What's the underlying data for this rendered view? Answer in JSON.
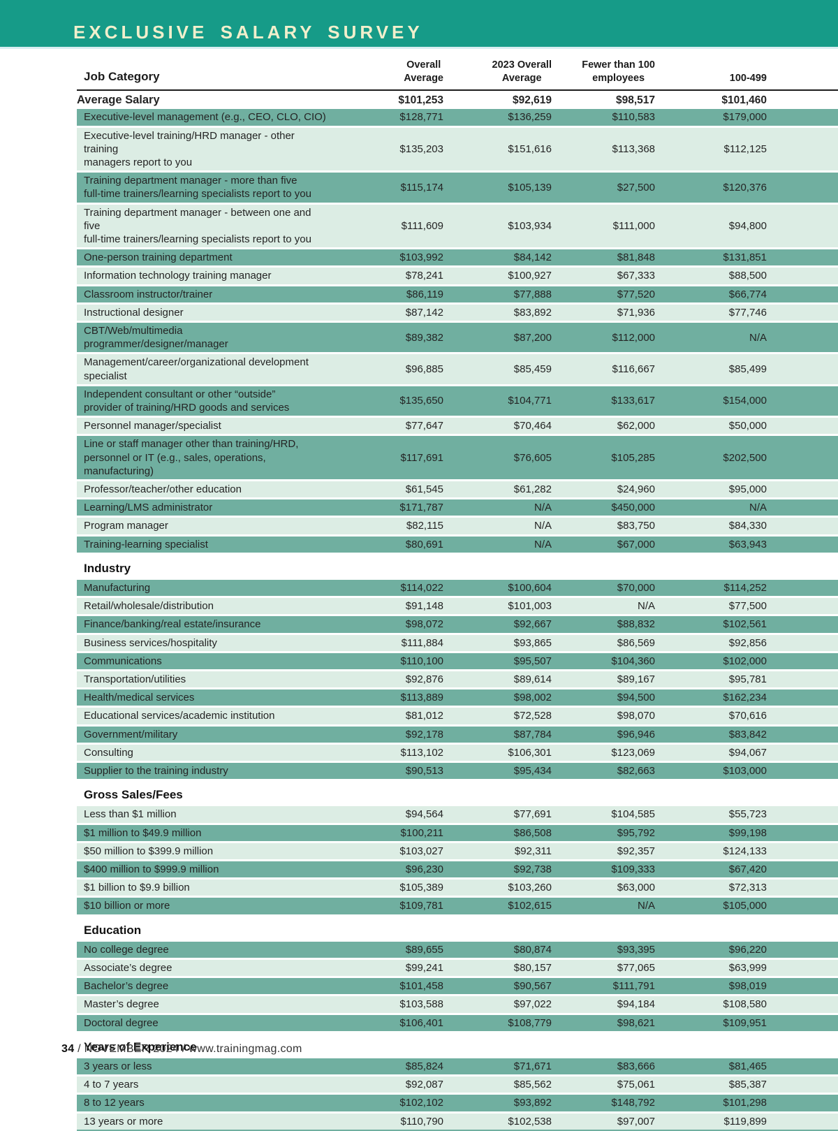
{
  "header": {
    "title": "EXCLUSIVE SALARY SURVEY"
  },
  "colors": {
    "band_teal": "#169b88",
    "row_teal": "#70afa0",
    "row_light": "#dcede4",
    "title_text": "#f1efcc",
    "rule_black": "#1c1c1c"
  },
  "footer": {
    "page_number": "34",
    "text": " / NOVEMBER 2024 / www.trainingmag.com"
  },
  "table": {
    "columns": [
      "Job Category",
      "Overall\nAverage",
      "2023 Overall\nAverage",
      "Fewer than 100\nemployees",
      "100-499"
    ],
    "summary_row": {
      "label": "Average Salary",
      "values": [
        "$101,253",
        "$92,619",
        "$98,517",
        "$101,460"
      ]
    },
    "sections": [
      {
        "heading": null,
        "first_shade": "teal",
        "rows": [
          {
            "label": "Executive-level management (e.g., CEO, CLO, CIO)",
            "values": [
              "$128,771",
              "$136,259",
              "$110,583",
              "$179,000"
            ]
          },
          {
            "label": "Executive-level training/HRD manager - other training\nmanagers report to you",
            "values": [
              "$135,203",
              "$151,616",
              "$113,368",
              "$112,125"
            ]
          },
          {
            "label": "Training department manager - more than five\nfull-time trainers/learning specialists report to you",
            "values": [
              "$115,174",
              "$105,139",
              "$27,500",
              "$120,376"
            ]
          },
          {
            "label": "Training department manager - between one and five\nfull-time trainers/learning specialists report to you",
            "values": [
              "$111,609",
              "$103,934",
              "$111,000",
              "$94,800"
            ]
          },
          {
            "label": "One-person training department",
            "values": [
              "$103,992",
              "$84,142",
              "$81,848",
              "$131,851"
            ]
          },
          {
            "label": "Information technology training manager",
            "values": [
              "$78,241",
              "$100,927",
              "$67,333",
              "$88,500"
            ]
          },
          {
            "label": "Classroom instructor/trainer",
            "values": [
              "$86,119",
              "$77,888",
              "$77,520",
              "$66,774"
            ]
          },
          {
            "label": "Instructional designer",
            "values": [
              "$87,142",
              "$83,892",
              "$71,936",
              "$77,746"
            ]
          },
          {
            "label": "CBT/Web/multimedia programmer/designer/manager",
            "values": [
              "$89,382",
              "$87,200",
              "$112,000",
              "N/A"
            ]
          },
          {
            "label": "Management/career/organizational development specialist",
            "values": [
              "$96,885",
              "$85,459",
              "$116,667",
              "$85,499"
            ]
          },
          {
            "label": "Independent consultant or other “outside”\nprovider of training/HRD goods and services",
            "values": [
              "$135,650",
              "$104,771",
              "$133,617",
              "$154,000"
            ]
          },
          {
            "label": "Personnel manager/specialist",
            "values": [
              "$77,647",
              "$70,464",
              "$62,000",
              "$50,000"
            ]
          },
          {
            "label": "Line or staff manager other than training/HRD,\npersonnel or IT (e.g., sales, operations, manufacturing)",
            "values": [
              "$117,691",
              "$76,605",
              "$105,285",
              "$202,500"
            ]
          },
          {
            "label": "Professor/teacher/other education",
            "values": [
              "$61,545",
              "$61,282",
              "$24,960",
              "$95,000"
            ]
          },
          {
            "label": "Learning/LMS administrator",
            "values": [
              "$171,787",
              "N/A",
              "$450,000",
              "N/A"
            ]
          },
          {
            "label": "Program manager",
            "values": [
              "$82,115",
              "N/A",
              "$83,750",
              "$84,330"
            ]
          },
          {
            "label": "Training-learning specialist",
            "values": [
              "$80,691",
              "N/A",
              "$67,000",
              "$63,943"
            ]
          }
        ]
      },
      {
        "heading": "Industry",
        "first_shade": "teal",
        "rows": [
          {
            "label": "Manufacturing",
            "values": [
              "$114,022",
              "$100,604",
              "$70,000",
              "$114,252"
            ]
          },
          {
            "label": "Retail/wholesale/distribution",
            "values": [
              "$91,148",
              "$101,003",
              "N/A",
              "$77,500"
            ]
          },
          {
            "label": "Finance/banking/real estate/insurance",
            "values": [
              "$98,072",
              "$92,667",
              "$88,832",
              "$102,561"
            ]
          },
          {
            "label": "Business services/hospitality",
            "values": [
              "$111,884",
              "$93,865",
              "$86,569",
              "$92,856"
            ]
          },
          {
            "label": "Communications",
            "values": [
              "$110,100",
              "$95,507",
              "$104,360",
              "$102,000"
            ]
          },
          {
            "label": "Transportation/utilities",
            "values": [
              "$92,876",
              "$89,614",
              "$89,167",
              "$95,781"
            ]
          },
          {
            "label": "Health/medical services",
            "values": [
              "$113,889",
              "$98,002",
              "$94,500",
              "$162,234"
            ]
          },
          {
            "label": "Educational services/academic institution",
            "values": [
              "$81,012",
              "$72,528",
              "$98,070",
              "$70,616"
            ]
          },
          {
            "label": "Government/military",
            "values": [
              "$92,178",
              "$87,784",
              "$96,946",
              "$83,842"
            ]
          },
          {
            "label": "Consulting",
            "values": [
              "$113,102",
              "$106,301",
              "$123,069",
              "$94,067"
            ]
          },
          {
            "label": "Supplier to the training industry",
            "values": [
              "$90,513",
              "$95,434",
              "$82,663",
              "$103,000"
            ]
          }
        ]
      },
      {
        "heading": "Gross Sales/Fees",
        "first_shade": "light",
        "rows": [
          {
            "label": "Less than $1 million",
            "values": [
              "$94,564",
              "$77,691",
              "$104,585",
              "$55,723"
            ]
          },
          {
            "label": "$1 million to $49.9 million",
            "values": [
              "$100,211",
              "$86,508",
              "$95,792",
              "$99,198"
            ]
          },
          {
            "label": "$50 million to $399.9 million",
            "values": [
              "$103,027",
              "$92,311",
              "$92,357",
              "$124,133"
            ]
          },
          {
            "label": "$400 million to $999.9 million",
            "values": [
              "$96,230",
              "$92,738",
              "$109,333",
              "$67,420"
            ]
          },
          {
            "label": "$1 billion to $9.9 billion",
            "values": [
              "$105,389",
              "$103,260",
              "$63,000",
              "$72,313"
            ]
          },
          {
            "label": "$10 billion or more",
            "values": [
              "$109,781",
              "$102,615",
              "N/A",
              "$105,000"
            ]
          }
        ]
      },
      {
        "heading": "Education",
        "first_shade": "teal",
        "rows": [
          {
            "label": "No college degree",
            "values": [
              "$89,655",
              "$80,874",
              "$93,395",
              "$96,220"
            ]
          },
          {
            "label": "Associate’s degree",
            "values": [
              "$99,241",
              "$80,157",
              "$77,065",
              "$63,999"
            ]
          },
          {
            "label": "Bachelor’s degree",
            "values": [
              "$101,458",
              "$90,567",
              "$111,791",
              "$98,019"
            ]
          },
          {
            "label": "Master’s degree",
            "values": [
              "$103,588",
              "$97,022",
              "$94,184",
              "$108,580"
            ]
          },
          {
            "label": "Doctoral degree",
            "values": [
              "$106,401",
              "$108,779",
              "$98,621",
              "$109,951"
            ]
          }
        ]
      },
      {
        "heading": "Years of Experience",
        "first_shade": "teal",
        "rows": [
          {
            "label": "3 years or less",
            "values": [
              "$85,824",
              "$71,671",
              "$83,666",
              "$81,465"
            ]
          },
          {
            "label": "4 to 7 years",
            "values": [
              "$92,087",
              "$85,562",
              "$75,061",
              "$85,387"
            ]
          },
          {
            "label": "8 to 12 years",
            "values": [
              "$102,102",
              "$93,892",
              "$148,792",
              "$101,298"
            ]
          },
          {
            "label": "13 years or more",
            "values": [
              "$110,790",
              "$102,538",
              "$97,007",
              "$119,899"
            ]
          }
        ]
      }
    ]
  }
}
